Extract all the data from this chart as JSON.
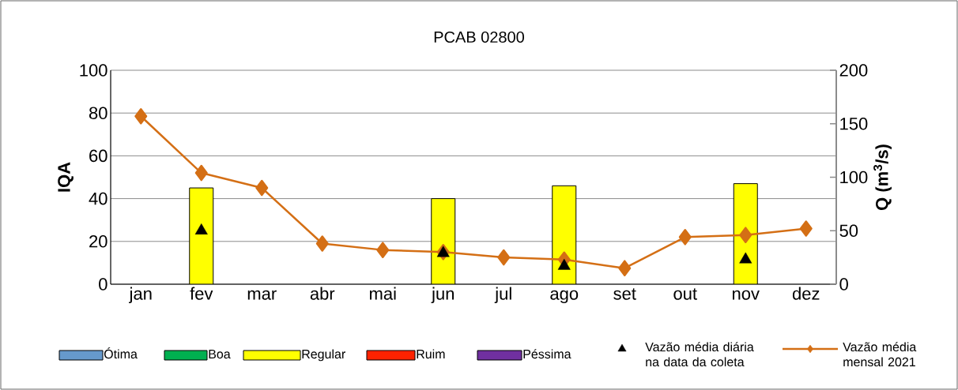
{
  "chart_data": {
    "type": "bar",
    "title": "PCAB 02800",
    "ylabel": "IQA",
    "y2label": "Q (m$^{3}$/s)",
    "categories": [
      "jan",
      "fev",
      "mar",
      "abr",
      "mai",
      "jun",
      "jul",
      "ago",
      "set",
      "out",
      "nov",
      "dez"
    ],
    "series": [
      {
        "name": "Ótima",
        "color": "#6699cc",
        "values": [
          null,
          null,
          null,
          null,
          null,
          null,
          null,
          null,
          null,
          null,
          null,
          null
        ]
      },
      {
        "name": "Boa",
        "color": "#00b050",
        "values": [
          null,
          null,
          null,
          null,
          null,
          null,
          null,
          null,
          null,
          null,
          null,
          null
        ]
      },
      {
        "name": "Regular",
        "color": "#ffff00",
        "values": [
          null,
          45,
          null,
          null,
          null,
          40,
          null,
          46,
          null,
          null,
          47,
          null
        ]
      },
      {
        "name": "Ruim",
        "color": "#ff2200",
        "values": [
          null,
          null,
          null,
          null,
          null,
          null,
          null,
          null,
          null,
          null,
          null,
          null
        ]
      },
      {
        "name": "Péssima",
        "color": "#7030a0",
        "values": [
          null,
          null,
          null,
          null,
          null,
          null,
          null,
          null,
          null,
          null,
          null,
          null
        ]
      },
      {
        "name": "Vazão média diária na data da coleta",
        "type": "scatter",
        "axis": "y2",
        "marker": "triangle",
        "color": "#000000",
        "values": [
          null,
          50,
          null,
          null,
          null,
          29,
          null,
          17,
          null,
          null,
          23,
          null
        ]
      },
      {
        "name": "Vazão média mensal 2021",
        "type": "line",
        "axis": "y2",
        "marker": "diamond",
        "line_style": "solid",
        "color": "#d46f15",
        "values": [
          157,
          104,
          90,
          38,
          32,
          30,
          25,
          23,
          15,
          44,
          46,
          52
        ]
      }
    ],
    "ylim": [
      0,
      100
    ],
    "yticks": [
      0,
      20,
      40,
      60,
      80,
      100
    ],
    "y2lim": [
      0,
      200
    ],
    "y2ticks": [
      0,
      50,
      100,
      150,
      200
    ],
    "grid": "y",
    "legend": "bottom"
  }
}
